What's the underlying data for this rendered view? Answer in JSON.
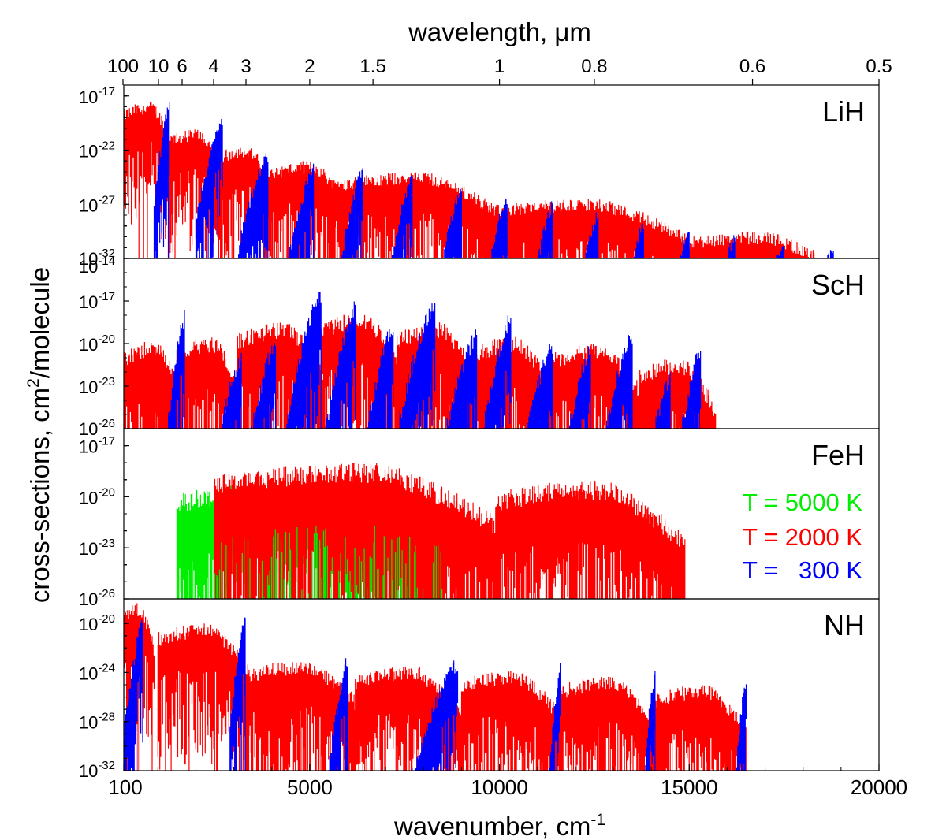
{
  "chart_data": {
    "type": "line",
    "title": "",
    "xlabel": "wavenumber, cm",
    "xlabel_sup": "-1",
    "x_ticks": [
      "100",
      "5000",
      "10000",
      "15000",
      "20000"
    ],
    "xlim": [
      100,
      20000
    ],
    "top_axis": {
      "label": "wavelength, μm",
      "ticks": [
        {
          "label": "100",
          "value": 100
        },
        {
          "label": "10",
          "value": 10
        },
        {
          "label": "6",
          "value": 6
        },
        {
          "label": "4",
          "value": 4
        },
        {
          "label": "3",
          "value": 3
        },
        {
          "label": "2",
          "value": 2
        },
        {
          "label": "1.5",
          "value": 1.5
        },
        {
          "label": "1",
          "value": 1
        },
        {
          "label": "0.8",
          "value": 0.8
        },
        {
          "label": "0.6",
          "value": 0.6
        },
        {
          "label": "0.5",
          "value": 0.5
        }
      ]
    },
    "ylabel_pre": "cross-sections, cm",
    "ylabel_sup": "2",
    "ylabel_post": "/molecule",
    "y_scale": "log",
    "grid": false,
    "legend": {
      "placement": "right, inside FeH panel",
      "entries": [
        {
          "label": "T = 5000 K",
          "color": "#00ee00"
        },
        {
          "label": "T = 2000 K",
          "color": "#ff0000"
        },
        {
          "label": "T =   300 K",
          "color": "#0000ff"
        }
      ]
    },
    "panels": [
      {
        "molecule": "LiH",
        "ylim_exp": [
          -32,
          -16
        ],
        "y_ticks": [
          {
            "base": "10",
            "exp": "-17"
          },
          {
            "base": "10",
            "exp": "-22"
          },
          {
            "base": "10",
            "exp": "-27"
          },
          {
            "base": "10",
            "exp": "-32"
          }
        ],
        "y_tick_values": [
          -17,
          -22,
          -27,
          -32
        ],
        "series": [
          {
            "temperature_K": 2000,
            "color": "#ff0000",
            "bands": [
              [
                100,
                1400,
                -17.5
              ],
              [
                1300,
                2700,
                -20
              ],
              [
                2600,
                4000,
                -21.5
              ],
              [
                3900,
                6000,
                -23
              ],
              [
                5500,
                10000,
                -24
              ],
              [
                9500,
                15000,
                -26.5
              ],
              [
                14500,
                19000,
                -29.5
              ]
            ]
          },
          {
            "temperature_K": 300,
            "color": "#0000ff",
            "bands": [
              [
                900,
                1300,
                -18
              ],
              [
                2000,
                2700,
                -19.5
              ],
              [
                3100,
                3900,
                -22.5
              ],
              [
                4400,
                5100,
                -23.8
              ],
              [
                5800,
                6400,
                -23.8
              ],
              [
                7100,
                7700,
                -24.5
              ],
              [
                8400,
                9000,
                -25.5
              ],
              [
                9600,
                10200,
                -26.5
              ],
              [
                10800,
                11400,
                -27.2
              ],
              [
                12000,
                12600,
                -28
              ],
              [
                13200,
                13800,
                -29
              ],
              [
                14400,
                15000,
                -29.5
              ],
              [
                15600,
                16200,
                -30
              ],
              [
                16800,
                17500,
                -30.5
              ],
              [
                18100,
                18800,
                -31
              ]
            ]
          }
        ]
      },
      {
        "molecule": "ScH",
        "ylim_exp": [
          -26,
          -14
        ],
        "y_ticks": [
          {
            "base": "10",
            "exp": "-14"
          },
          {
            "base": "10",
            "exp": "-17"
          },
          {
            "base": "10",
            "exp": "-20"
          },
          {
            "base": "10",
            "exp": "-23"
          },
          {
            "base": "10",
            "exp": "-26"
          }
        ],
        "y_tick_values": [
          -14,
          -17,
          -20,
          -23,
          -26
        ],
        "series": [
          {
            "temperature_K": 2000,
            "color": "#ff0000",
            "bands": [
              [
                100,
                1600,
                -19.8
              ],
              [
                1500,
                3200,
                -19.5
              ],
              [
                3100,
                5400,
                -18.5
              ],
              [
                5300,
                7400,
                -17.8
              ],
              [
                7300,
                9400,
                -18.5
              ],
              [
                9300,
                11400,
                -19.5
              ],
              [
                11300,
                13800,
                -20
              ],
              [
                13700,
                15700,
                -21
              ]
            ]
          },
          {
            "temperature_K": 300,
            "color": "#0000ff",
            "bands": [
              [
                1200,
                1700,
                -18.2
              ],
              [
                2400,
                3200,
                -21
              ],
              [
                3300,
                4100,
                -19.8
              ],
              [
                4400,
                5300,
                -16.5
              ],
              [
                5400,
                6200,
                -17.5
              ],
              [
                6400,
                7200,
                -18.8
              ],
              [
                7300,
                8300,
                -17.2
              ],
              [
                8400,
                9400,
                -19.5
              ],
              [
                9500,
                10300,
                -18.2
              ],
              [
                10500,
                11400,
                -20.2
              ],
              [
                11600,
                12400,
                -20.5
              ],
              [
                12600,
                13500,
                -19.5
              ],
              [
                13700,
                14500,
                -22.5
              ],
              [
                14600,
                15300,
                -20.5
              ]
            ]
          }
        ]
      },
      {
        "molecule": "FeH",
        "ylim_exp": [
          -26,
          -16
        ],
        "y_ticks": [
          {
            "base": "10",
            "exp": "-17"
          },
          {
            "base": "10",
            "exp": "-20"
          },
          {
            "base": "10",
            "exp": "-23"
          },
          {
            "base": "10",
            "exp": "-26"
          }
        ],
        "y_tick_values": [
          -17,
          -20,
          -23,
          -26
        ],
        "series": [
          {
            "temperature_K": 5000,
            "color": "#00ee00",
            "bands": [
              [
                1500,
                8500,
                -19
              ]
            ]
          },
          {
            "temperature_K": 2000,
            "color": "#ff0000",
            "bands": [
              [
                2500,
                10000,
                -18
              ],
              [
                9900,
                14900,
                -19
              ]
            ]
          }
        ]
      },
      {
        "molecule": "NH",
        "ylim_exp": [
          -32,
          -18
        ],
        "y_ticks": [
          {
            "base": "10",
            "exp": "-20"
          },
          {
            "base": "10",
            "exp": "-24"
          },
          {
            "base": "10",
            "exp": "-28"
          },
          {
            "base": "10",
            "exp": "-32"
          }
        ],
        "y_tick_values": [
          -20,
          -24,
          -28,
          -32
        ],
        "series": [
          {
            "temperature_K": 2000,
            "color": "#ff0000",
            "bands": [
              [
                100,
                900,
                -18.3
              ],
              [
                1000,
                3400,
                -20
              ],
              [
                3300,
                6300,
                -23
              ],
              [
                6200,
                9000,
                -23.5
              ],
              [
                9000,
                11600,
                -23.8
              ],
              [
                11600,
                14100,
                -24.3
              ],
              [
                14100,
                16500,
                -25
              ]
            ]
          },
          {
            "temperature_K": 300,
            "color": "#0000ff",
            "bands": [
              [
                100,
                600,
                -20
              ],
              [
                2900,
                3300,
                -19.5
              ],
              [
                5500,
                6000,
                -23
              ],
              [
                7700,
                8900,
                -23.3
              ],
              [
                11300,
                11600,
                -23.8
              ],
              [
                13800,
                14100,
                -24
              ],
              [
                16200,
                16500,
                -24.5
              ]
            ]
          }
        ]
      }
    ]
  }
}
